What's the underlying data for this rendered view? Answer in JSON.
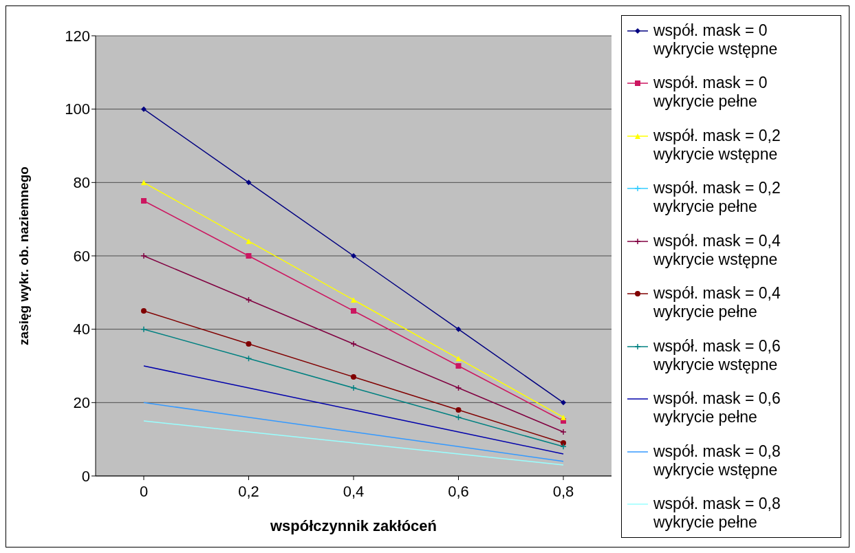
{
  "chart_data": {
    "type": "line",
    "xlabel": "współczynnik zakłóceń",
    "ylabel": "zasięg wykr. ob. naziemnego",
    "categories": [
      "0",
      "0,2",
      "0,4",
      "0,6",
      "0,8"
    ],
    "ylim": [
      0,
      120
    ],
    "yticks": [
      0,
      20,
      40,
      60,
      80,
      100,
      120
    ],
    "grid": "y",
    "legend": "right",
    "series": [
      {
        "name": "współ. mask = 0\nwykrycie wstępne",
        "color": "#000080",
        "marker": "diamond",
        "values": [
          100,
          80,
          60,
          40,
          20
        ]
      },
      {
        "name": "współ. mask = 0\nwykrycie pełne",
        "color": "#cc1660",
        "marker": "square",
        "values": [
          75,
          60,
          45,
          30,
          15
        ]
      },
      {
        "name": "współ. mask = 0,2\nwykrycie wstępne",
        "color": "#ffff00",
        "marker": "triangle",
        "values": [
          80,
          64,
          48,
          32,
          16
        ]
      },
      {
        "name": "współ. mask = 0,2\nwykrycie pełne",
        "color": "#33ccff",
        "marker": "cross",
        "values": [
          null,
          null,
          null,
          null,
          null
        ]
      },
      {
        "name": "współ. mask = 0,4\nwykrycie wstępne",
        "color": "#800040",
        "marker": "cross",
        "values": [
          60,
          48,
          36,
          24,
          12
        ]
      },
      {
        "name": "współ. mask = 0,4\nwykrycie pełne",
        "color": "#800000",
        "marker": "circle",
        "values": [
          45,
          36,
          27,
          18,
          9
        ]
      },
      {
        "name": "współ. mask = 0,6\nwykrycie wstępne",
        "color": "#008080",
        "marker": "cross",
        "values": [
          40,
          32,
          24,
          16,
          8
        ]
      },
      {
        "name": "współ. mask = 0,6\nwykrycie pełne",
        "color": "#0000aa",
        "marker": "none",
        "values": [
          30,
          24,
          18,
          12,
          6
        ]
      },
      {
        "name": "współ. mask = 0,8\nwykrycie wstępne",
        "color": "#3399ff",
        "marker": "none",
        "values": [
          20,
          16,
          12,
          8,
          4
        ]
      },
      {
        "name": "współ. mask = 0,8\nwykrycie pełne",
        "color": "#99ffff",
        "marker": "none",
        "values": [
          15,
          12,
          9,
          6,
          3
        ]
      }
    ]
  }
}
